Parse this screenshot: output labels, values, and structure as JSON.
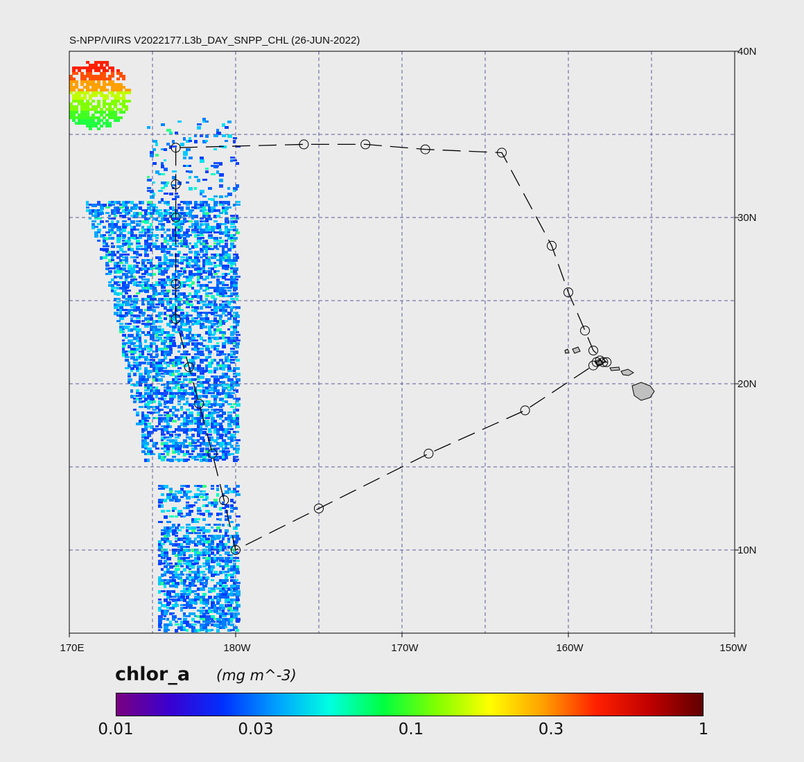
{
  "title": "S-NPP/VIIRS V2022177.L3b_DAY_SNPP_CHL (26-JUN-2022)",
  "map": {
    "lon_range": [
      170,
      210
    ],
    "lat_range": [
      5,
      40
    ],
    "lat_labels": [
      "40N",
      "30N",
      "20N",
      "10N"
    ],
    "lon_labels": [
      "170E",
      "180W",
      "170W",
      "160W",
      "150W"
    ],
    "grid_color": "#5a5a9a",
    "land_color": "#c0c0c0"
  },
  "colorbar": {
    "variable": "chlor_a",
    "units": "(mg m^-3)",
    "tick_labels": [
      "0.01",
      "0.03",
      "0.1",
      "0.3",
      "1"
    ],
    "scale": "log",
    "range": [
      0.01,
      1
    ],
    "colors": [
      "#7a0080",
      "#3a00d0",
      "#0030ff",
      "#00a0ff",
      "#00ffe0",
      "#00ff40",
      "#80ff00",
      "#ffff00",
      "#ffa000",
      "#ff2000",
      "#c00000",
      "#600000"
    ]
  },
  "cruise_track": {
    "line_style": "dashed",
    "stations": [
      [
        176.4,
        34.2
      ],
      [
        176.4,
        32.0
      ],
      [
        176.4,
        30.0
      ],
      [
        176.4,
        26.0
      ],
      [
        176.4,
        23.9
      ],
      [
        177.2,
        21.0
      ],
      [
        177.8,
        18.8
      ],
      [
        178.6,
        15.8
      ],
      [
        179.3,
        13.0
      ],
      [
        180.0,
        10.0
      ],
      [
        185.0,
        12.5
      ],
      [
        191.6,
        15.8
      ],
      [
        197.4,
        18.4
      ],
      [
        201.5,
        21.1
      ],
      [
        201.7,
        21.3
      ],
      [
        201.9,
        21.4
      ],
      [
        202.1,
        21.3
      ],
      [
        202.3,
        21.3
      ],
      [
        201.5,
        22.0
      ],
      [
        201.0,
        23.2
      ],
      [
        200.0,
        25.5
      ],
      [
        199.0,
        28.3
      ],
      [
        196.0,
        33.9
      ],
      [
        191.4,
        34.1
      ],
      [
        187.8,
        34.4
      ],
      [
        184.1,
        34.4
      ]
    ]
  }
}
